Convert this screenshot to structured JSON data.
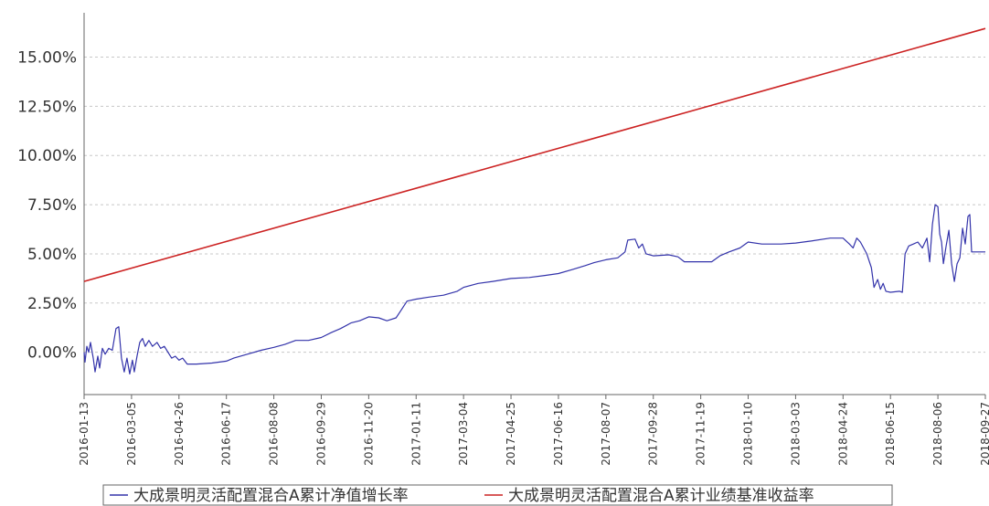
{
  "chart_data": {
    "type": "line",
    "title": "",
    "xlabel": "",
    "ylabel": "",
    "ylim": [
      -2.15,
      17.25
    ],
    "yticks": [
      "0.00%",
      "2.50%",
      "5.00%",
      "7.50%",
      "10.00%",
      "12.50%",
      "15.00%"
    ],
    "ytick_values": [
      0,
      2.5,
      5,
      7.5,
      10,
      12.5,
      15
    ],
    "x_range": [
      "2016-01-13",
      "2018-09-27"
    ],
    "xticks": [
      "2016-01-13",
      "2016-03-05",
      "2016-04-26",
      "2016-06-17",
      "2016-08-08",
      "2016-09-29",
      "2016-11-20",
      "2017-01-11",
      "2017-03-04",
      "2017-04-25",
      "2017-06-16",
      "2017-08-07",
      "2017-09-28",
      "2017-11-19",
      "2018-01-10",
      "2018-03-03",
      "2018-04-24",
      "2018-06-15",
      "2018-08-06",
      "2018-09-27"
    ],
    "grid": true,
    "legend_position": "bottom",
    "series": [
      {
        "name": "大成景明灵活配置混合A累计净值增长率",
        "color": "#3333aa",
        "points": [
          [
            "2016-01-13",
            0.0
          ],
          [
            "2016-01-14",
            -0.5
          ],
          [
            "2016-01-16",
            0.3
          ],
          [
            "2016-01-18",
            0.0
          ],
          [
            "2016-01-20",
            0.5
          ],
          [
            "2016-01-23",
            -0.3
          ],
          [
            "2016-01-25",
            -1.0
          ],
          [
            "2016-01-28",
            -0.2
          ],
          [
            "2016-01-30",
            -0.8
          ],
          [
            "2016-02-02",
            0.2
          ],
          [
            "2016-02-05",
            -0.1
          ],
          [
            "2016-02-09",
            0.2
          ],
          [
            "2016-02-13",
            0.1
          ],
          [
            "2016-02-17",
            1.2
          ],
          [
            "2016-02-20",
            1.3
          ],
          [
            "2016-02-23",
            -0.3
          ],
          [
            "2016-02-26",
            -1.0
          ],
          [
            "2016-02-29",
            -0.3
          ],
          [
            "2016-03-03",
            -1.1
          ],
          [
            "2016-03-06",
            -0.4
          ],
          [
            "2016-03-08",
            -1.0
          ],
          [
            "2016-03-11",
            -0.2
          ],
          [
            "2016-03-14",
            0.5
          ],
          [
            "2016-03-17",
            0.7
          ],
          [
            "2016-03-20",
            0.3
          ],
          [
            "2016-03-24",
            0.6
          ],
          [
            "2016-03-28",
            0.3
          ],
          [
            "2016-04-02",
            0.5
          ],
          [
            "2016-04-06",
            0.2
          ],
          [
            "2016-04-10",
            0.3
          ],
          [
            "2016-04-14",
            0.0
          ],
          [
            "2016-04-18",
            -0.3
          ],
          [
            "2016-04-22",
            -0.2
          ],
          [
            "2016-04-26",
            -0.4
          ],
          [
            "2016-04-30",
            -0.3
          ],
          [
            "2016-05-05",
            -0.6
          ],
          [
            "2016-05-15",
            -0.6
          ],
          [
            "2016-06-01",
            -0.55
          ],
          [
            "2016-06-17",
            -0.45
          ],
          [
            "2016-06-25",
            -0.3
          ],
          [
            "2016-07-10",
            -0.1
          ],
          [
            "2016-07-25",
            0.1
          ],
          [
            "2016-08-08",
            0.25
          ],
          [
            "2016-08-20",
            0.4
          ],
          [
            "2016-09-01",
            0.6
          ],
          [
            "2016-09-15",
            0.6
          ],
          [
            "2016-09-29",
            0.75
          ],
          [
            "2016-10-10",
            1.0
          ],
          [
            "2016-10-20",
            1.2
          ],
          [
            "2016-11-01",
            1.5
          ],
          [
            "2016-11-10",
            1.6
          ],
          [
            "2016-11-20",
            1.8
          ],
          [
            "2016-12-01",
            1.75
          ],
          [
            "2016-12-10",
            1.6
          ],
          [
            "2016-12-20",
            1.75
          ],
          [
            "2016-12-25",
            2.1
          ],
          [
            "2017-01-01",
            2.6
          ],
          [
            "2017-01-11",
            2.7
          ],
          [
            "2017-01-25",
            2.8
          ],
          [
            "2017-02-10",
            2.9
          ],
          [
            "2017-02-25",
            3.1
          ],
          [
            "2017-03-04",
            3.3
          ],
          [
            "2017-03-20",
            3.5
          ],
          [
            "2017-04-05",
            3.6
          ],
          [
            "2017-04-25",
            3.75
          ],
          [
            "2017-05-15",
            3.8
          ],
          [
            "2017-06-01",
            3.9
          ],
          [
            "2017-06-16",
            4.0
          ],
          [
            "2017-07-01",
            4.2
          ],
          [
            "2017-07-15",
            4.4
          ],
          [
            "2017-07-25",
            4.55
          ],
          [
            "2017-08-07",
            4.7
          ],
          [
            "2017-08-20",
            4.8
          ],
          [
            "2017-08-28",
            5.1
          ],
          [
            "2017-08-31",
            5.7
          ],
          [
            "2017-09-08",
            5.75
          ],
          [
            "2017-09-12",
            5.3
          ],
          [
            "2017-09-16",
            5.5
          ],
          [
            "2017-09-20",
            5.0
          ],
          [
            "2017-09-28",
            4.9
          ],
          [
            "2017-10-15",
            4.95
          ],
          [
            "2017-10-25",
            4.85
          ],
          [
            "2017-11-01",
            4.6
          ],
          [
            "2017-11-19",
            4.6
          ],
          [
            "2017-12-01",
            4.6
          ],
          [
            "2017-12-10",
            4.9
          ],
          [
            "2017-12-20",
            5.1
          ],
          [
            "2018-01-01",
            5.3
          ],
          [
            "2018-01-10",
            5.6
          ],
          [
            "2018-01-25",
            5.5
          ],
          [
            "2018-02-15",
            5.5
          ],
          [
            "2018-03-03",
            5.55
          ],
          [
            "2018-03-20",
            5.65
          ],
          [
            "2018-04-10",
            5.8
          ],
          [
            "2018-04-24",
            5.8
          ],
          [
            "2018-05-01",
            5.5
          ],
          [
            "2018-05-05",
            5.3
          ],
          [
            "2018-05-09",
            5.8
          ],
          [
            "2018-05-13",
            5.6
          ],
          [
            "2018-05-20",
            5.0
          ],
          [
            "2018-05-25",
            4.3
          ],
          [
            "2018-05-28",
            3.3
          ],
          [
            "2018-06-01",
            3.7
          ],
          [
            "2018-06-04",
            3.2
          ],
          [
            "2018-06-07",
            3.5
          ],
          [
            "2018-06-10",
            3.1
          ],
          [
            "2018-06-15",
            3.05
          ],
          [
            "2018-06-25",
            3.1
          ],
          [
            "2018-06-28",
            3.05
          ],
          [
            "2018-07-01",
            5.0
          ],
          [
            "2018-07-05",
            5.4
          ],
          [
            "2018-07-10",
            5.5
          ],
          [
            "2018-07-15",
            5.6
          ],
          [
            "2018-07-20",
            5.3
          ],
          [
            "2018-07-25",
            5.8
          ],
          [
            "2018-07-28",
            4.6
          ],
          [
            "2018-07-31",
            6.5
          ],
          [
            "2018-08-03",
            7.5
          ],
          [
            "2018-08-06",
            7.4
          ],
          [
            "2018-08-08",
            6.0
          ],
          [
            "2018-08-10",
            5.6
          ],
          [
            "2018-08-12",
            4.5
          ],
          [
            "2018-08-15",
            5.4
          ],
          [
            "2018-08-18",
            6.2
          ],
          [
            "2018-08-21",
            4.5
          ],
          [
            "2018-08-24",
            3.6
          ],
          [
            "2018-08-27",
            4.5
          ],
          [
            "2018-08-30",
            4.8
          ],
          [
            "2018-09-02",
            6.3
          ],
          [
            "2018-09-05",
            5.5
          ],
          [
            "2018-09-08",
            6.9
          ],
          [
            "2018-09-10",
            7.0
          ],
          [
            "2018-09-12",
            5.1
          ],
          [
            "2018-09-27",
            5.1
          ]
        ]
      },
      {
        "name": "大成景明灵活配置混合A累计业绩基准收益率",
        "color": "#cc2222",
        "points": [
          [
            "2016-01-13",
            3.6
          ],
          [
            "2018-09-27",
            16.45
          ]
        ]
      }
    ]
  }
}
